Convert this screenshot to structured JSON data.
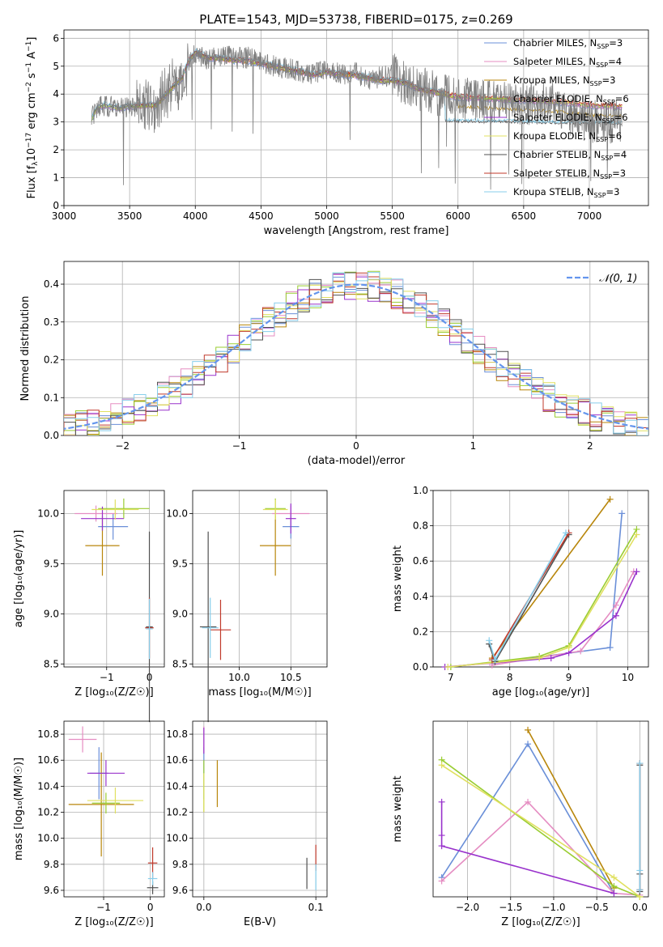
{
  "page": {
    "title": "PLATE=1543, MJD=53738, FIBERID=0175, z=0.269"
  },
  "colors": {
    "grid": "#b0b0b0",
    "data": "#808080",
    "normal": "#6495ed"
  },
  "models": [
    {
      "label": "Chabrier MILES, N",
      "sub": "SSP",
      "tail": "=3",
      "color": "#6a8fd8"
    },
    {
      "label": "Salpeter MILES, N",
      "sub": "SSP",
      "tail": "=4",
      "color": "#e58dc2"
    },
    {
      "label": "Kroupa MILES, N",
      "sub": "SSP",
      "tail": "=3",
      "color": "#b8860b"
    },
    {
      "label": "Chabrier ELODIE, N",
      "sub": "SSP",
      "tail": "=6",
      "color": "#9acd32"
    },
    {
      "label": "Salpeter ELODIE, N",
      "sub": "SSP",
      "tail": "=6",
      "color": "#9932cc"
    },
    {
      "label": "Kroupa ELODIE, N",
      "sub": "SSP",
      "tail": "=6",
      "color": "#e0e060"
    },
    {
      "label": "Chabrier STELIB, N",
      "sub": "SSP",
      "tail": "=4",
      "color": "#505050"
    },
    {
      "label": "Salpeter STELIB, N",
      "sub": "SSP",
      "tail": "=3",
      "color": "#c0392b"
    },
    {
      "label": "Kroupa STELIB, N",
      "sub": "SSP",
      "tail": "=3",
      "color": "#87ceeb"
    }
  ],
  "chart_data": [
    {
      "id": "spectrum",
      "type": "line",
      "xlabel": "wavelength [Angstrom, rest frame]",
      "ylabel": "Flux [f",
      "ylabel_parts": [
        "Flux [f",
        "λ",
        "10",
        "−17",
        " erg cm",
        "−2",
        " s",
        "−1",
        " A",
        "−1",
        "]"
      ],
      "xlim": [
        3000,
        7450
      ],
      "ylim": [
        0,
        6.3
      ],
      "xticks": [
        3000,
        3500,
        4000,
        4500,
        5000,
        5500,
        6000,
        6500,
        7000
      ],
      "yticks": [
        0,
        1,
        2,
        3,
        4,
        5,
        6
      ],
      "data_profile": {
        "x": [
          3200,
          3250,
          3300,
          3400,
          3500,
          3600,
          3700,
          3800,
          3850,
          3900,
          3950,
          4000,
          4100,
          4200,
          4300,
          4400,
          4500,
          4600,
          4700,
          4800,
          4900,
          5000,
          5100,
          5200,
          5300,
          5400,
          5500,
          5600,
          5700,
          5800,
          5900,
          6000,
          6100,
          6200,
          6300,
          6400,
          6500,
          6600,
          6700,
          6800,
          6900,
          7000,
          7100,
          7200
        ],
        "y": [
          3.0,
          3.5,
          3.6,
          3.5,
          3.55,
          3.6,
          3.6,
          4.2,
          4.4,
          4.4,
          5.0,
          5.5,
          5.2,
          5.4,
          5.3,
          5.3,
          5.2,
          5.0,
          4.9,
          4.8,
          4.7,
          4.9,
          4.7,
          4.8,
          4.5,
          4.6,
          4.7,
          4.4,
          4.2,
          4.1,
          3.9,
          3.9,
          3.8,
          3.7,
          3.7,
          3.6,
          3.7,
          3.6,
          3.8,
          3.4,
          3.2,
          3.0,
          3.0,
          3.0
        ]
      },
      "model_profile": {
        "x": [
          3200,
          3250,
          3300,
          3400,
          3500,
          3600,
          3700,
          3800,
          3900,
          3950,
          4000,
          4100,
          4200,
          4300,
          4400,
          4500,
          4600,
          4700,
          4800,
          4900,
          5000,
          5100,
          5200,
          5300,
          5400,
          5500,
          5600,
          5700,
          5800,
          5900,
          6000,
          6200,
          6400,
          6600,
          6800,
          7000,
          7200
        ],
        "y": [
          3.0,
          3.5,
          3.6,
          3.5,
          3.55,
          3.6,
          3.6,
          4.1,
          4.6,
          5.2,
          5.5,
          5.3,
          5.3,
          5.2,
          5.2,
          5.1,
          5.0,
          4.9,
          4.8,
          4.7,
          4.8,
          4.7,
          4.7,
          4.6,
          4.5,
          4.5,
          4.4,
          4.2,
          4.1,
          4.0,
          3.9,
          3.85,
          3.8,
          3.75,
          3.7,
          3.6,
          3.55
        ]
      }
    },
    {
      "id": "residuals",
      "type": "histogram",
      "xlabel": "(data-model)/error",
      "ylabel": "Normed distribution",
      "xlim": [
        -2.5,
        2.5
      ],
      "ylim": [
        0,
        0.46
      ],
      "xticks": [
        -2,
        -1,
        0,
        1,
        2
      ],
      "yticks": [
        0.0,
        0.1,
        0.2,
        0.3,
        0.4
      ],
      "legend": "𝒩(0, 1)",
      "bin_width": 0.1
    },
    {
      "id": "age-vs-Z",
      "type": "scatter",
      "xlabel": "Z [log₁₀(Z/Z☉)]",
      "ylabel": "age  [log₁₀(age/yr)]",
      "xlim": [
        -2.0,
        0.35
      ],
      "ylim": [
        8.47,
        10.23
      ],
      "xticks": [
        -1,
        0
      ],
      "yticks": [
        8.5,
        9.0,
        9.5,
        10.0
      ],
      "points": [
        {
          "m": 0,
          "x": -0.85,
          "y": 9.87,
          "xerr": 0.35,
          "yerr": 0.13
        },
        {
          "m": 1,
          "x": -1.25,
          "y": 10.0,
          "xerr": 0.5,
          "yerr": 0.08
        },
        {
          "m": 2,
          "x": -1.1,
          "y": 9.68,
          "xerr": 0.4,
          "yerr": 0.3
        },
        {
          "m": 3,
          "x": -0.6,
          "y": 10.05,
          "xerr": 0.6,
          "yerr": 0.1
        },
        {
          "m": 4,
          "x": -1.1,
          "y": 9.95,
          "xerr": 0.5,
          "yerr": 0.12
        },
        {
          "m": 5,
          "x": -0.8,
          "y": 10.04,
          "xerr": 0.55,
          "yerr": 0.1
        },
        {
          "m": 6,
          "x": 0.0,
          "y": 8.87,
          "xerr": 0.08,
          "yerr": 0.95
        },
        {
          "m": 7,
          "x": 0.0,
          "y": 8.86,
          "xerr": 0.1,
          "yerr": 0.3
        },
        {
          "m": 8,
          "x": 0.0,
          "y": 8.85,
          "xerr": 0.08,
          "yerr": 0.3
        }
      ]
    },
    {
      "id": "age-vs-mass",
      "type": "scatter",
      "xlabel": "mass [log₁₀(M/M☉)]",
      "ylabel": "",
      "xlim": [
        9.55,
        10.85
      ],
      "ylim": [
        8.47,
        10.23
      ],
      "xticks": [
        10.0,
        10.5
      ],
      "yticks": [
        8.5,
        9.0,
        9.5,
        10.0
      ],
      "points": [
        {
          "m": 0,
          "x": 10.5,
          "y": 9.87,
          "xerr": 0.08,
          "yerr": 0.12
        },
        {
          "m": 1,
          "x": 10.5,
          "y": 10.0,
          "xerr": 0.18,
          "yerr": 0.08
        },
        {
          "m": 2,
          "x": 10.35,
          "y": 9.68,
          "xerr": 0.15,
          "yerr": 0.3
        },
        {
          "m": 3,
          "x": 10.35,
          "y": 10.05,
          "xerr": 0.1,
          "yerr": 0.1
        },
        {
          "m": 4,
          "x": 10.5,
          "y": 9.95,
          "xerr": 0.05,
          "yerr": 0.15
        },
        {
          "m": 5,
          "x": 10.35,
          "y": 10.04,
          "xerr": 0.12,
          "yerr": 0.1
        },
        {
          "m": 6,
          "x": 9.7,
          "y": 8.87,
          "xerr": 0.08,
          "yerr": 0.95
        },
        {
          "m": 7,
          "x": 9.82,
          "y": 8.84,
          "xerr": 0.1,
          "yerr": 0.3
        },
        {
          "m": 8,
          "x": 9.72,
          "y": 8.86,
          "xerr": 0.08,
          "yerr": 0.3
        }
      ]
    },
    {
      "id": "weight-vs-age",
      "type": "line",
      "xlabel": "age  [log₁₀(age/yr)]",
      "ylabel": "mass weight",
      "xlim": [
        6.7,
        10.35
      ],
      "ylim": [
        0,
        1.0
      ],
      "xticks": [
        7,
        8,
        9,
        10
      ],
      "yticks": [
        0.0,
        0.2,
        0.4,
        0.6,
        0.8,
        1.0
      ],
      "series": [
        {
          "m": 0,
          "x": [
            7.7,
            9.7,
            9.9
          ],
          "y": [
            0.02,
            0.11,
            0.87
          ]
        },
        {
          "m": 1,
          "x": [
            7.7,
            9.2,
            9.8,
            10.1
          ],
          "y": [
            0.01,
            0.09,
            0.35,
            0.54
          ]
        },
        {
          "m": 2,
          "x": [
            7.7,
            9.7
          ],
          "y": [
            0.05,
            0.95
          ]
        },
        {
          "m": 3,
          "x": [
            7.0,
            8.5,
            9.0,
            10.15
          ],
          "y": [
            0.0,
            0.06,
            0.12,
            0.78
          ]
        },
        {
          "m": 4,
          "x": [
            6.9,
            8.7,
            9.0,
            9.8,
            10.15
          ],
          "y": [
            0.0,
            0.05,
            0.08,
            0.29,
            0.54
          ]
        },
        {
          "m": 5,
          "x": [
            6.95,
            8.5,
            9.0,
            10.15
          ],
          "y": [
            0.0,
            0.05,
            0.11,
            0.75
          ]
        },
        {
          "m": 6,
          "x": [
            7.65,
            7.75,
            9.0
          ],
          "y": [
            0.13,
            0.03,
            0.75
          ]
        },
        {
          "m": 7,
          "x": [
            7.7,
            9.0
          ],
          "y": [
            0.04,
            0.76
          ]
        },
        {
          "m": 8,
          "x": [
            7.65,
            7.75,
            8.95
          ],
          "y": [
            0.15,
            0.04,
            0.76
          ]
        }
      ]
    },
    {
      "id": "mass-vs-Z",
      "type": "scatter",
      "xlabel": "Z [log₁₀(Z/Z☉)]",
      "ylabel": "mass [log₁₀(M/M☉)]",
      "xlim": [
        -1.85,
        0.3
      ],
      "ylim": [
        9.55,
        10.9
      ],
      "xticks": [
        -1,
        0
      ],
      "yticks": [
        9.6,
        9.8,
        10.0,
        10.2,
        10.4,
        10.6,
        10.8
      ],
      "points": [
        {
          "m": 0,
          "x": -1.1,
          "y": 10.5,
          "xerr": 0.2,
          "yerr": 0.2
        },
        {
          "m": 1,
          "x": -1.45,
          "y": 10.76,
          "xerr": 0.3,
          "yerr": 0.1
        },
        {
          "m": 2,
          "x": -1.05,
          "y": 10.26,
          "xerr": 0.7,
          "yerr": 0.4
        },
        {
          "m": 3,
          "x": -0.95,
          "y": 10.27,
          "xerr": 0.3,
          "yerr": 0.08
        },
        {
          "m": 4,
          "x": -0.95,
          "y": 10.5,
          "xerr": 0.4,
          "yerr": 0.1
        },
        {
          "m": 5,
          "x": -0.75,
          "y": 10.29,
          "xerr": 0.6,
          "yerr": 0.1
        },
        {
          "m": 6,
          "x": 0.05,
          "y": 9.62,
          "xerr": 0.12,
          "yerr": 0.05
        },
        {
          "m": 7,
          "x": 0.05,
          "y": 9.81,
          "xerr": 0.1,
          "yerr": 0.12
        },
        {
          "m": 8,
          "x": 0.05,
          "y": 9.69,
          "xerr": 0.1,
          "yerr": 0.05
        }
      ]
    },
    {
      "id": "mass-vs-ebv",
      "type": "scatter",
      "xlabel": "E(B-V)",
      "ylabel": "",
      "xlim": [
        -0.01,
        0.11
      ],
      "ylim": [
        9.55,
        10.9
      ],
      "xticks": [
        0.0,
        0.1
      ],
      "yticks": [
        9.6,
        9.8,
        10.0,
        10.2,
        10.4,
        10.6,
        10.8
      ],
      "points": [
        {
          "m": 0,
          "x": 0.0,
          "y": 10.5,
          "xerr": 0.0,
          "yerr": 0.2
        },
        {
          "m": 1,
          "x": 0.0,
          "y": 10.76,
          "xerr": 0.0,
          "yerr": 0.1
        },
        {
          "m": 2,
          "x": 0.012,
          "y": 10.42,
          "xerr": 0.0,
          "yerr": 0.18
        },
        {
          "m": 3,
          "x": 0.0,
          "y": 10.4,
          "xerr": 0.0,
          "yerr": 0.2
        },
        {
          "m": 4,
          "x": 0.0,
          "y": 10.75,
          "xerr": 0.0,
          "yerr": 0.1
        },
        {
          "m": 5,
          "x": 0.0,
          "y": 10.35,
          "xerr": 0.0,
          "yerr": 0.15
        },
        {
          "m": 6,
          "x": 0.092,
          "y": 9.73,
          "xerr": 0.0,
          "yerr": 0.12
        },
        {
          "m": 7,
          "x": 0.1,
          "y": 9.85,
          "xerr": 0.0,
          "yerr": 0.1
        },
        {
          "m": 8,
          "x": 0.1,
          "y": 9.7,
          "xerr": 0.0,
          "yerr": 0.1
        }
      ]
    },
    {
      "id": "weight-vs-Z",
      "type": "line",
      "xlabel": "Z [log₁₀(Z/Z☉)]",
      "ylabel": "mass weight",
      "xlim": [
        -2.4,
        0.1
      ],
      "ylim": [
        0,
        1.0
      ],
      "xticks": [
        -2.0,
        -1.5,
        -1.0,
        -0.5,
        0.0
      ],
      "series": [
        {
          "m": 0,
          "x": [
            -2.3,
            -1.3,
            -0.3
          ],
          "y": [
            0.11,
            0.87,
            0.02
          ]
        },
        {
          "m": 1,
          "x": [
            -2.3,
            -1.3,
            -0.3,
            0.0
          ],
          "y": [
            0.09,
            0.54,
            0.02,
            0.01
          ]
        },
        {
          "m": 2,
          "x": [
            -1.3,
            -0.3
          ],
          "y": [
            0.95,
            0.05
          ]
        },
        {
          "m": 3,
          "x": [
            -2.3,
            -0.3,
            0.0
          ],
          "y": [
            0.78,
            0.06,
            0.0
          ]
        },
        {
          "m": 4,
          "x": [
            -2.3,
            -2.3,
            -2.3,
            -0.3
          ],
          "y": [
            0.54,
            0.35,
            0.29,
            0.02
          ]
        },
        {
          "m": 5,
          "x": [
            -2.3,
            -0.3,
            0.0
          ],
          "y": [
            0.75,
            0.11,
            0.0
          ]
        },
        {
          "m": 6,
          "x": [
            0.0,
            0.0,
            0.0
          ],
          "y": [
            0.75,
            0.13,
            0.03
          ]
        },
        {
          "m": 7,
          "x": [
            0.0,
            0.0
          ],
          "y": [
            0.76,
            0.04
          ]
        },
        {
          "m": 8,
          "x": [
            0.0,
            0.0,
            0.0
          ],
          "y": [
            0.76,
            0.15,
            0.04
          ]
        }
      ]
    }
  ]
}
